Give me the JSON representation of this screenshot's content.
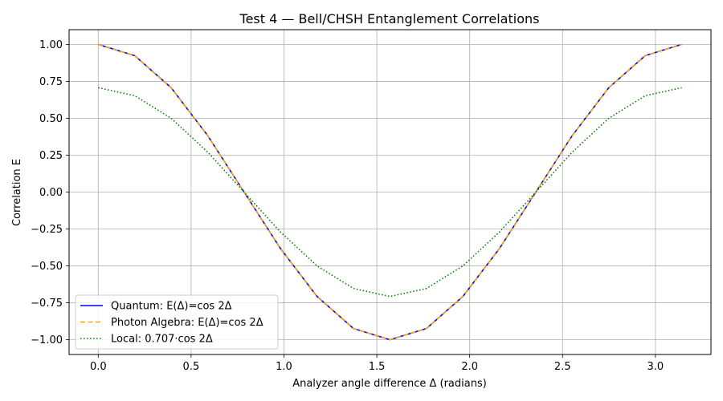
{
  "chart_data": {
    "type": "line",
    "title": "Test 4 — Bell/CHSH Entanglement Correlations",
    "xlabel": "Analyzer angle difference Δ (radians)",
    "ylabel": "Correlation E",
    "xlim": [
      -0.157,
      3.299
    ],
    "ylim": [
      -1.1,
      1.1
    ],
    "xticks": [
      0.0,
      0.5,
      1.0,
      1.5,
      2.0,
      2.5,
      3.0
    ],
    "xtick_labels": [
      "0.0",
      "0.5",
      "1.0",
      "1.5",
      "2.0",
      "2.5",
      "3.0"
    ],
    "yticks": [
      1.0,
      0.75,
      0.5,
      0.25,
      0.0,
      -0.25,
      -0.5,
      -0.75,
      -1.0
    ],
    "ytick_labels": [
      "1.00",
      "0.75",
      "0.50",
      "0.25",
      "0.00",
      "−0.25",
      "−0.50",
      "−0.75",
      "−1.00"
    ],
    "grid": true,
    "legend_position": "lower-left",
    "x": [
      0.0,
      0.1963,
      0.3927,
      0.589,
      0.7854,
      0.9817,
      1.1781,
      1.3744,
      1.5708,
      1.7671,
      1.9635,
      2.1598,
      2.3562,
      2.5525,
      2.7489,
      2.9452,
      3.1416
    ],
    "series": [
      {
        "name": "Quantum: E(Δ)=cos 2Δ",
        "color": "#0000ff",
        "style": "solid",
        "values": [
          1.0,
          0.924,
          0.707,
          0.383,
          0.0,
          -0.383,
          -0.707,
          -0.924,
          -1.0,
          -0.924,
          -0.707,
          -0.383,
          0.0,
          0.383,
          0.707,
          0.924,
          1.0
        ]
      },
      {
        "name": "Photon Algebra: E(Δ)=cos 2Δ",
        "color": "#ffa500",
        "style": "dashed",
        "values": [
          1.0,
          0.924,
          0.707,
          0.383,
          0.0,
          -0.383,
          -0.707,
          -0.924,
          -1.0,
          -0.924,
          -0.707,
          -0.383,
          0.0,
          0.383,
          0.707,
          0.924,
          1.0
        ]
      },
      {
        "name": "Local: 0.707·cos 2Δ",
        "color": "#008000",
        "style": "dotted",
        "values": [
          0.707,
          0.653,
          0.5,
          0.271,
          0.0,
          -0.271,
          -0.5,
          -0.653,
          -0.707,
          -0.653,
          -0.5,
          -0.271,
          0.0,
          0.271,
          0.5,
          0.653,
          0.707
        ]
      }
    ]
  }
}
